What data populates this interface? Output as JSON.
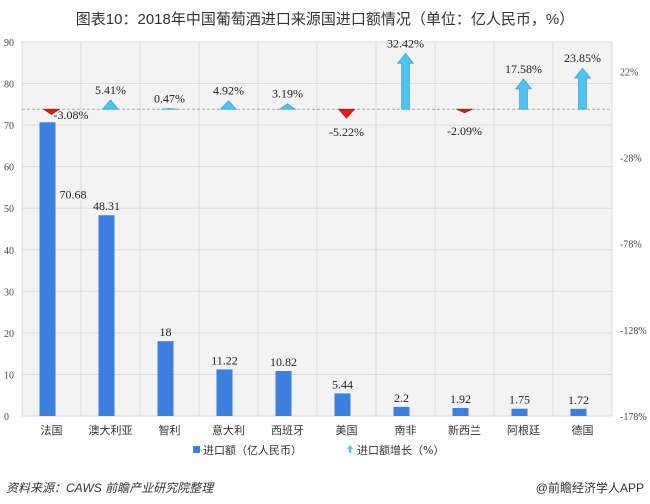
{
  "title": "图表10：2018年中国葡萄酒进口来源国进口额情况（单位：亿人民币，%）",
  "source": "资料来源：CAWS 前瞻产业研究院整理",
  "brand": "@前瞻经济学人APP",
  "chart_data": {
    "type": "bar",
    "categories": [
      "法国",
      "澳大利亚",
      "智利",
      "意大利",
      "西班牙",
      "美国",
      "南非",
      "新西兰",
      "阿根廷",
      "德国"
    ],
    "series": [
      {
        "name": "进口额（亿人民币）",
        "type": "bar",
        "axis": "left",
        "color": "#3d7fdc",
        "values": [
          70.68,
          48.31,
          18,
          11.22,
          10.82,
          5.44,
          2.2,
          1.92,
          1.75,
          1.72
        ],
        "labels": [
          "70.68",
          "48.31",
          "18",
          "11.22",
          "10.82",
          "5.44",
          "2.2",
          "1.92",
          "1.75",
          "1.72"
        ]
      },
      {
        "name": "进口额增长（%）",
        "type": "arrow",
        "axis": "right",
        "color_up": "#4ec3f0",
        "color_down": "#e8181c",
        "values": [
          -3.08,
          5.41,
          0.47,
          4.92,
          3.19,
          -5.22,
          32.42,
          -2.09,
          17.58,
          23.85
        ],
        "labels": [
          "-3.08%",
          "5.41%",
          "0.47%",
          "4.92%",
          "3.19%",
          "-5.22%",
          "32.42%",
          "-2.09%",
          "17.58%",
          "23.85%"
        ]
      }
    ],
    "left_axis": {
      "ylim": [
        0,
        90
      ],
      "ticks": [
        "0",
        "10",
        "20",
        "30",
        "40",
        "50",
        "60",
        "70",
        "80",
        "90"
      ]
    },
    "right_axis": {
      "ylim": [
        -178,
        39
      ],
      "ticks": [
        "-178%",
        "-128%",
        "-78%",
        "-28%",
        "22%"
      ],
      "tick_values": [
        -178,
        -128,
        -78,
        -28,
        22
      ]
    },
    "grid": true,
    "legend": "bottom"
  }
}
